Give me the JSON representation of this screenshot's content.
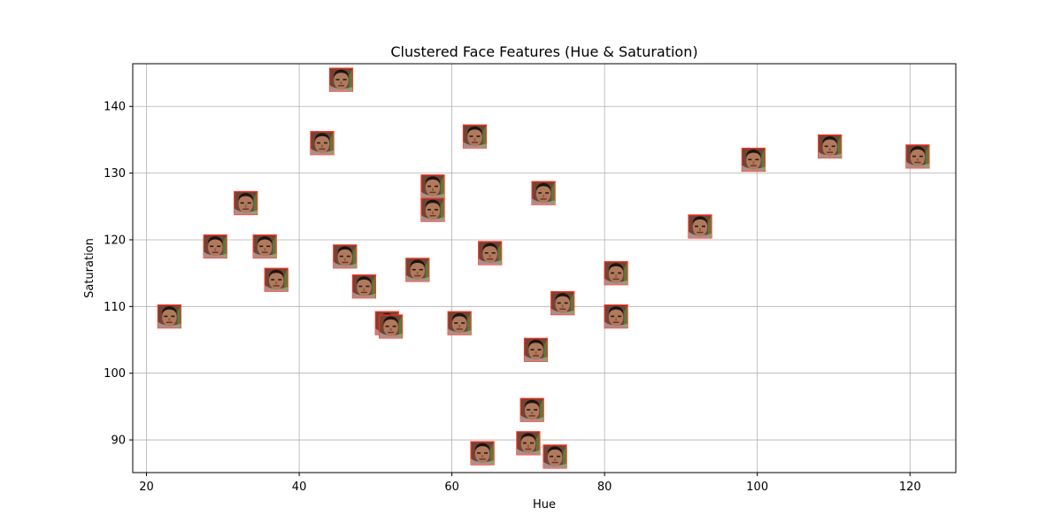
{
  "chart_data": {
    "type": "scatter",
    "marker": "face-thumbnail",
    "title": "Clustered Face Features (Hue & Saturation)",
    "xlabel": "Hue",
    "ylabel": "Saturation",
    "xlim": [
      18.2,
      126
    ],
    "ylim": [
      85.1,
      146.4
    ],
    "xticks": [
      20,
      40,
      60,
      80,
      100,
      120
    ],
    "yticks": [
      90,
      100,
      110,
      120,
      130,
      140
    ],
    "grid": true,
    "points": [
      {
        "x": 23.0,
        "y": 108.5
      },
      {
        "x": 29.0,
        "y": 119.0
      },
      {
        "x": 33.0,
        "y": 125.5
      },
      {
        "x": 35.5,
        "y": 119.0
      },
      {
        "x": 37.0,
        "y": 114.0
      },
      {
        "x": 43.0,
        "y": 134.5
      },
      {
        "x": 45.5,
        "y": 144.0
      },
      {
        "x": 46.0,
        "y": 117.5
      },
      {
        "x": 48.5,
        "y": 113.0
      },
      {
        "x": 51.5,
        "y": 107.5
      },
      {
        "x": 52.0,
        "y": 107.0
      },
      {
        "x": 55.5,
        "y": 115.5
      },
      {
        "x": 57.5,
        "y": 128.0
      },
      {
        "x": 57.5,
        "y": 124.5
      },
      {
        "x": 61.0,
        "y": 107.5
      },
      {
        "x": 63.0,
        "y": 135.5
      },
      {
        "x": 64.0,
        "y": 88.0
      },
      {
        "x": 65.0,
        "y": 118.0
      },
      {
        "x": 70.0,
        "y": 89.5
      },
      {
        "x": 70.5,
        "y": 94.5
      },
      {
        "x": 71.0,
        "y": 103.5
      },
      {
        "x": 72.0,
        "y": 127.0
      },
      {
        "x": 73.5,
        "y": 87.5
      },
      {
        "x": 74.5,
        "y": 110.5
      },
      {
        "x": 81.5,
        "y": 115.0
      },
      {
        "x": 81.5,
        "y": 108.5
      },
      {
        "x": 92.5,
        "y": 122.0
      },
      {
        "x": 99.5,
        "y": 132.0
      },
      {
        "x": 109.5,
        "y": 134.0
      },
      {
        "x": 121.0,
        "y": 132.5
      }
    ]
  }
}
